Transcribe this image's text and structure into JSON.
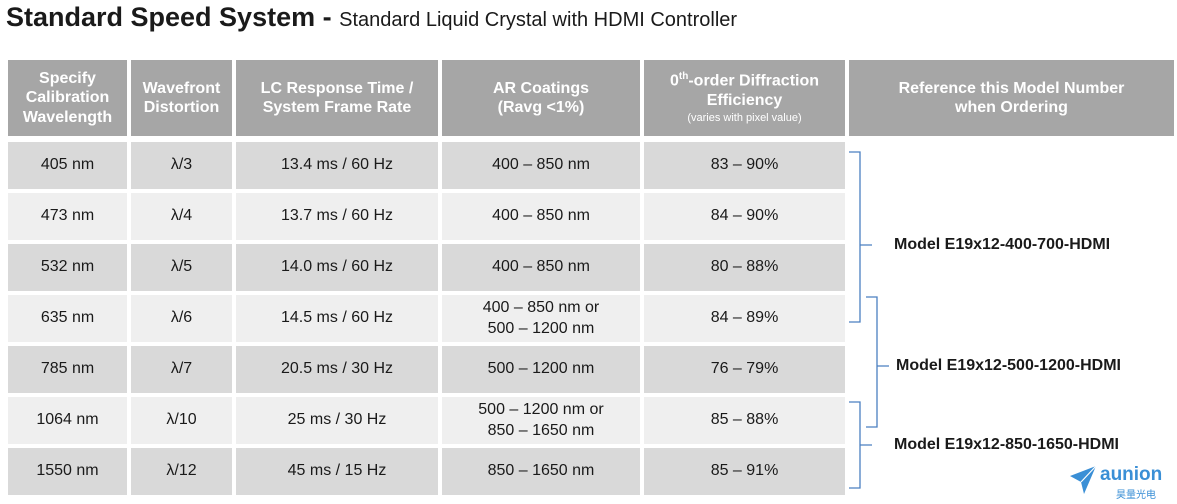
{
  "title": {
    "main": "Standard Speed System - ",
    "sub": "Standard Liquid Crystal with HDMI Controller"
  },
  "headers": {
    "wavelength": [
      "Specify",
      "Calibration",
      "Wavelength"
    ],
    "distortion": [
      "Wavefront",
      "Distortion"
    ],
    "response": [
      "LC Response Time /",
      "System Frame Rate"
    ],
    "coatings": [
      "AR Coatings",
      "(Ravg <1%)"
    ],
    "efficiency": {
      "sup": "th",
      "line1_prefix": "0",
      "line1_rest": "-order Diffraction",
      "line2": "Efficiency",
      "note": "(varies with pixel value)"
    },
    "reference": [
      "Reference this Model Number",
      "when Ordering"
    ]
  },
  "rows": [
    {
      "wavelength": "405 nm",
      "distortion": "λ/3",
      "response": "13.4 ms / 60 Hz",
      "coatings": [
        "400 – 850 nm"
      ],
      "efficiency": "83 – 90%"
    },
    {
      "wavelength": "473 nm",
      "distortion": "λ/4",
      "response": "13.7 ms / 60 Hz",
      "coatings": [
        "400 – 850 nm"
      ],
      "efficiency": "84 – 90%"
    },
    {
      "wavelength": "532 nm",
      "distortion": "λ/5",
      "response": "14.0 ms / 60 Hz",
      "coatings": [
        "400 – 850 nm"
      ],
      "efficiency": "80 – 88%"
    },
    {
      "wavelength": "635 nm",
      "distortion": "λ/6",
      "response": "14.5 ms / 60 Hz",
      "coatings": [
        "400 – 850 nm or",
        "500 – 1200 nm"
      ],
      "efficiency": "84 – 89%"
    },
    {
      "wavelength": "785 nm",
      "distortion": "λ/7",
      "response": "20.5 ms / 30 Hz",
      "coatings": [
        "500 – 1200 nm"
      ],
      "efficiency": "76 – 79%"
    },
    {
      "wavelength": "1064 nm",
      "distortion": "λ/10",
      "response": "25 ms / 30 Hz",
      "coatings": [
        "500 – 1200 nm or",
        "850 – 1650 nm"
      ],
      "efficiency": "85 – 88%"
    },
    {
      "wavelength": "1550 nm",
      "distortion": "λ/12",
      "response": "45 ms / 15 Hz",
      "coatings": [
        "850 – 1650 nm"
      ],
      "efficiency": "85 – 91%"
    }
  ],
  "models": [
    "Model E19x12-400-700-HDMI",
    "Model E19x12-500-1200-HDMI",
    "Model E19x12-850-1650-HDMI"
  ],
  "logo": {
    "word": "aunion",
    "cn": "昊量光电"
  },
  "colors": {
    "header_bg": "#a6a6a6",
    "row_dark": "#d9d9d9",
    "row_light": "#efefef",
    "bracket": "#4a7fc1",
    "logo": "#3a8fd6"
  }
}
